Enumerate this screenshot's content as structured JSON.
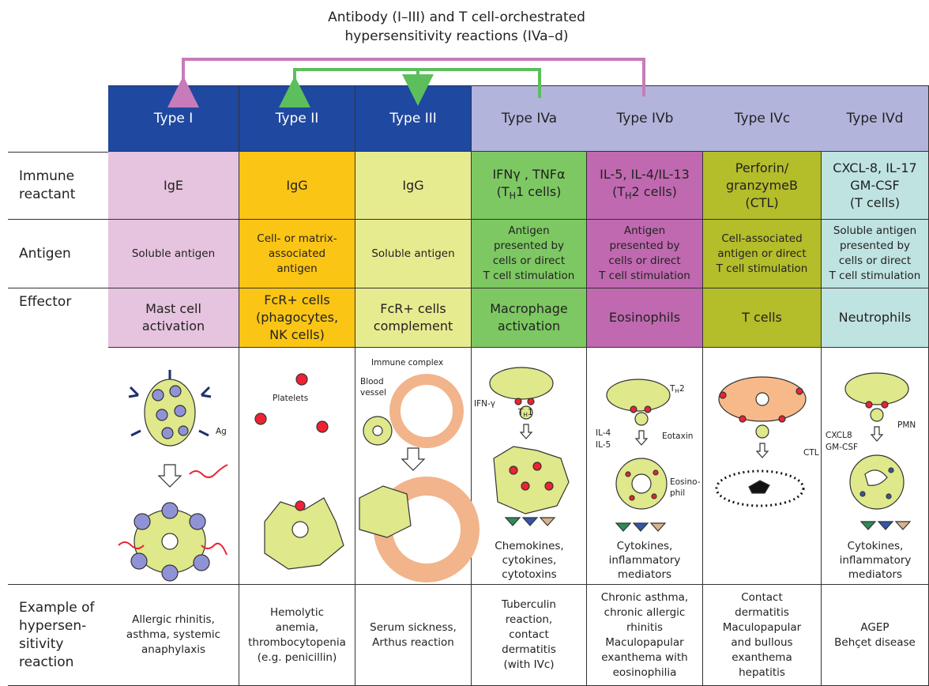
{
  "title": [
    "Antibody (I–III) and T cell-orchestrated",
    "hypersensitivity reactions (IVa–d)"
  ],
  "row_labels": {
    "reactant": [
      "Immune",
      "reactant"
    ],
    "antigen": [
      "Antigen"
    ],
    "effector": [
      "Effector"
    ],
    "example": [
      "Example of",
      "hypersen-",
      "sitivity",
      "reaction"
    ]
  },
  "columns": [
    {
      "header": "Type I",
      "reactant": [
        "IgE"
      ],
      "antigen": [
        "Soluble antigen"
      ],
      "effector": [
        "Mast cell",
        "activation"
      ],
      "labels": [
        "Ag"
      ],
      "example": [
        "Allergic rhinitis,",
        "asthma, systemic",
        "anaphylaxis"
      ]
    },
    {
      "header": "Type II",
      "reactant": [
        "IgG"
      ],
      "antigen": [
        "Cell- or matrix-",
        "associated",
        "antigen"
      ],
      "effector": [
        "FcR+ cells",
        "(phagocytes,",
        "NK cells)"
      ],
      "labels": [
        "Platelets"
      ],
      "example": [
        "Hemolytic",
        "anemia,",
        "thrombocytopenia",
        "(e.g. penicillin)"
      ]
    },
    {
      "header": "Type III",
      "reactant": [
        "IgG"
      ],
      "antigen": [
        "Soluble antigen"
      ],
      "effector": [
        "FcR+ cells",
        "complement"
      ],
      "labels": [
        "Immune complex",
        "Blood",
        "vessel"
      ],
      "example": [
        "Serum sickness,",
        "Arthus reaction"
      ]
    },
    {
      "header": "Type IVa",
      "reactant": [
        "IFNγ , TNFα",
        [
          "(T",
          "H",
          "1 cells)"
        ]
      ],
      "antigen": [
        "Antigen",
        "presented by",
        "cells or direct",
        "T cell stimulation"
      ],
      "effector": [
        "Macrophage",
        "activation"
      ],
      "labels": [
        "IFN-γ",
        [
          "T",
          "H",
          "1"
        ]
      ],
      "caption": [
        "Chemokines,",
        "cytokines,",
        "cytotoxins"
      ],
      "example": [
        "Tuberculin",
        "reaction,",
        "contact",
        "dermatitis",
        "(with IVc)"
      ]
    },
    {
      "header": "Type IVb",
      "reactant": [
        "IL-5, IL-4/IL-13",
        [
          "(T",
          "H",
          "2 cells)"
        ]
      ],
      "antigen": [
        "Antigen",
        "presented by",
        "cells or direct",
        "T cell stimulation"
      ],
      "effector": [
        "Eosinophils"
      ],
      "labels": [
        [
          "T",
          "H",
          "2"
        ],
        "IL-4",
        "IL-5",
        "Eotaxin",
        "Eosino-",
        "phil"
      ],
      "caption": [
        "Cytokines,",
        "inflammatory",
        "mediators"
      ],
      "example": [
        "Chronic asthma,",
        "chronic allergic",
        "rhinitis",
        "Maculopapular",
        "exanthema with",
        "eosinophilia"
      ]
    },
    {
      "header": "Type IVc",
      "reactant": [
        "Perforin/",
        "granzymeB",
        "(CTL)"
      ],
      "antigen": [
        "Cell-associated",
        "antigen or direct",
        "T cell stimulation"
      ],
      "effector": [
        "T cells"
      ],
      "labels": [
        "CTL"
      ],
      "example": [
        "Contact",
        "dermatitis",
        "Maculopapular",
        "and bullous",
        "exanthema",
        "hepatitis"
      ]
    },
    {
      "header": "Type IVd",
      "reactant": [
        "CXCL-8, IL-17",
        "GM-CSF",
        "(T cells)"
      ],
      "antigen": [
        "Soluble antigen",
        "presented by",
        "cells or direct",
        "T cell stimulation"
      ],
      "effector": [
        "Neutrophils"
      ],
      "labels": [
        "CXCL8",
        "GM-CSF",
        "PMN"
      ],
      "caption": [
        "Cytokines,",
        "inflammatory",
        "mediators"
      ],
      "example": [
        "AGEP",
        "Behçet disease"
      ]
    }
  ]
}
